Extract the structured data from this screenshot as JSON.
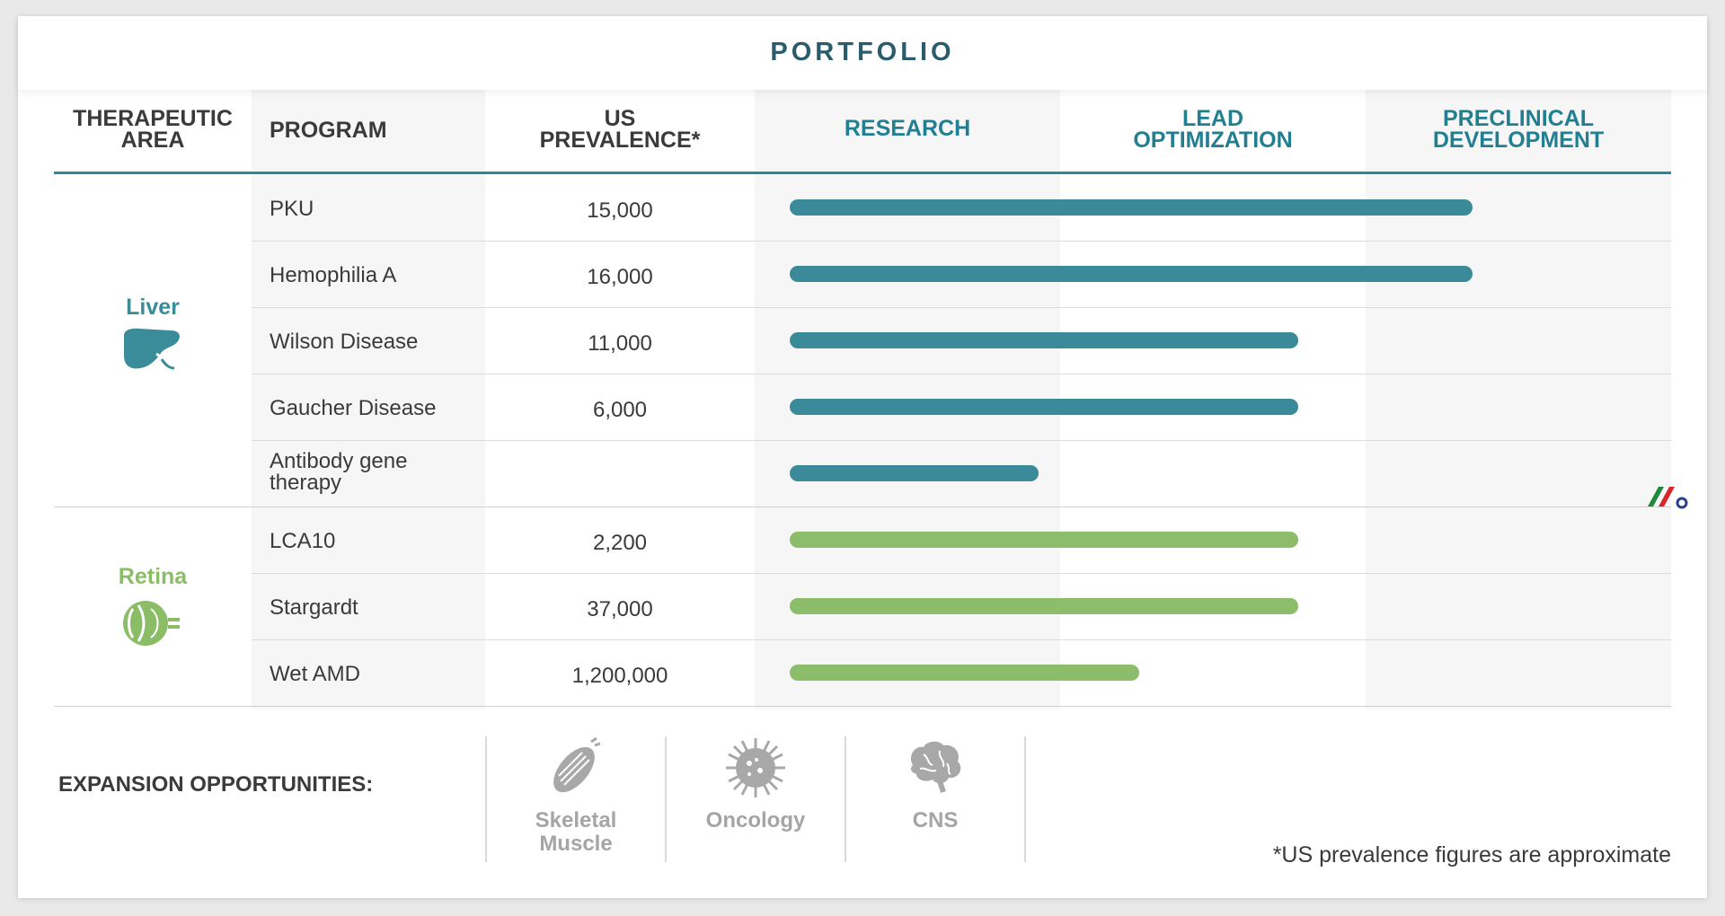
{
  "title": "PORTFOLIO",
  "headers": {
    "area_line1": "THERAPEUTIC",
    "area_line2": "AREA",
    "program": "PROGRAM",
    "prev_line1": "US",
    "prev_line2": "PREVALENCE*",
    "research": "RESEARCH",
    "lead_line1": "LEAD",
    "lead_line2": "OPTIMIZATION",
    "pre_line1": "PRECLINICAL",
    "pre_line2": "DEVELOPMENT"
  },
  "areas": {
    "liver": {
      "label": "Liver",
      "icon": "liver-icon",
      "color": "#3a8c9b"
    },
    "retina": {
      "label": "Retina",
      "icon": "eye-icon",
      "color": "#8bbd67"
    }
  },
  "colors": {
    "liver_bar": "#3a8a99",
    "retina_bar": "#8bbd6a",
    "stage_header": "#217f91",
    "title": "#2b5c6b"
  },
  "chart_data": {
    "type": "bar",
    "orientation": "horizontal",
    "stages": [
      "RESEARCH",
      "LEAD OPTIMIZATION",
      "PRECLINICAL DEVELOPMENT"
    ],
    "xlim": [
      0,
      3
    ],
    "categories": [
      "PKU",
      "Hemophilia A",
      "Wilson Disease",
      "Gaucher Disease",
      "Antibody gene therapy",
      "LCA10",
      "Stargardt",
      "Wet AMD"
    ],
    "area": [
      "Liver",
      "Liver",
      "Liver",
      "Liver",
      "Liver",
      "Retina",
      "Retina",
      "Retina"
    ],
    "prevalence": [
      "15,000",
      "16,000",
      "11,000",
      "6,000",
      "",
      "2,200",
      "37,000",
      "1,200,000"
    ],
    "values": [
      2.35,
      2.35,
      1.78,
      1.78,
      0.93,
      1.78,
      1.78,
      1.26
    ]
  },
  "expansion": {
    "title": "EXPANSION OPPORTUNITIES:",
    "items": [
      {
        "line1": "Skeletal",
        "line2": "Muscle",
        "icon": "muscle-icon"
      },
      {
        "line1": "Oncology",
        "line2": "",
        "icon": "cancer-cell-icon"
      },
      {
        "line1": "CNS",
        "line2": "",
        "icon": "brain-icon"
      }
    ]
  },
  "footnote": "*US prevalence figures are approximate"
}
